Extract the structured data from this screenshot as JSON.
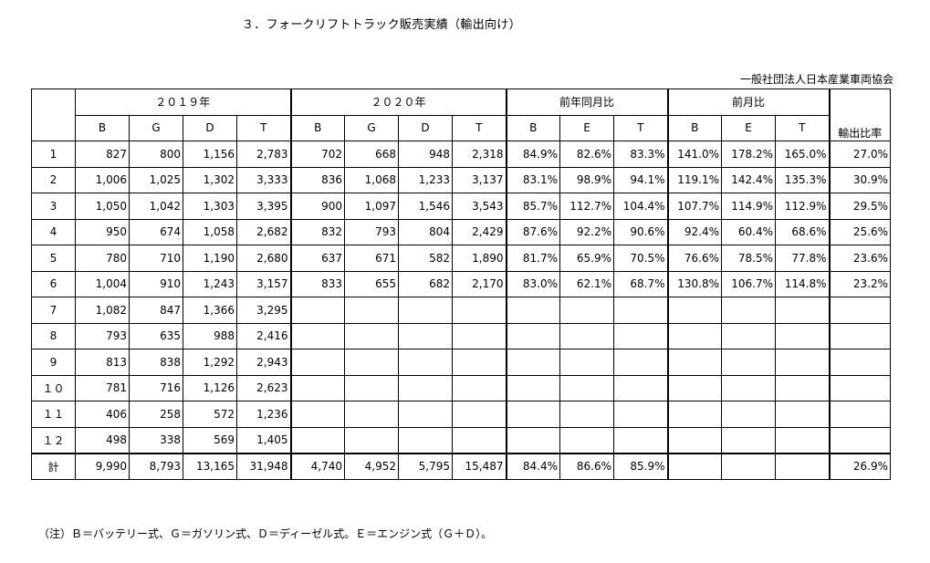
{
  "title": "３．フォークリフトトラック販売実績（輸出向け）",
  "organization": "一般社団法人日本産業車両協会",
  "header": {
    "group_2019": "２０１９年",
    "group_2020": "２０２０年",
    "group_yoy": "前年同月比",
    "group_mom": "前月比",
    "export_ratio": "輸出比率",
    "sub_2019": [
      "B",
      "G",
      "D",
      "T"
    ],
    "sub_2020": [
      "B",
      "G",
      "D",
      "T"
    ],
    "sub_yoy": [
      "B",
      "E",
      "T"
    ],
    "sub_mom": [
      "B",
      "E",
      "T"
    ]
  },
  "rows": [
    {
      "month": "1",
      "y2019": [
        "827",
        "800",
        "1,156",
        "2,783"
      ],
      "y2020": [
        "702",
        "668",
        "948",
        "2,318"
      ],
      "yoy": [
        "84.9%",
        "82.6%",
        "83.3%"
      ],
      "mom": [
        "141.0%",
        "178.2%",
        "165.0%"
      ],
      "ratio": "27.0%"
    },
    {
      "month": "2",
      "y2019": [
        "1,006",
        "1,025",
        "1,302",
        "3,333"
      ],
      "y2020": [
        "836",
        "1,068",
        "1,233",
        "3,137"
      ],
      "yoy": [
        "83.1%",
        "98.9%",
        "94.1%"
      ],
      "mom": [
        "119.1%",
        "142.4%",
        "135.3%"
      ],
      "ratio": "30.9%"
    },
    {
      "month": "3",
      "y2019": [
        "1,050",
        "1,042",
        "1,303",
        "3,395"
      ],
      "y2020": [
        "900",
        "1,097",
        "1,546",
        "3,543"
      ],
      "yoy": [
        "85.7%",
        "112.7%",
        "104.4%"
      ],
      "mom": [
        "107.7%",
        "114.9%",
        "112.9%"
      ],
      "ratio": "29.5%"
    },
    {
      "month": "4",
      "y2019": [
        "950",
        "674",
        "1,058",
        "2,682"
      ],
      "y2020": [
        "832",
        "793",
        "804",
        "2,429"
      ],
      "yoy": [
        "87.6%",
        "92.2%",
        "90.6%"
      ],
      "mom": [
        "92.4%",
        "60.4%",
        "68.6%"
      ],
      "ratio": "25.6%"
    },
    {
      "month": "5",
      "y2019": [
        "780",
        "710",
        "1,190",
        "2,680"
      ],
      "y2020": [
        "637",
        "671",
        "582",
        "1,890"
      ],
      "yoy": [
        "81.7%",
        "65.9%",
        "70.5%"
      ],
      "mom": [
        "76.6%",
        "78.5%",
        "77.8%"
      ],
      "ratio": "23.6%"
    },
    {
      "month": "6",
      "y2019": [
        "1,004",
        "910",
        "1,243",
        "3,157"
      ],
      "y2020": [
        "833",
        "655",
        "682",
        "2,170"
      ],
      "yoy": [
        "83.0%",
        "62.1%",
        "68.7%"
      ],
      "mom": [
        "130.8%",
        "106.7%",
        "114.8%"
      ],
      "ratio": "23.2%"
    },
    {
      "month": "7",
      "y2019": [
        "1,082",
        "847",
        "1,366",
        "3,295"
      ],
      "y2020": [
        "",
        "",
        "",
        ""
      ],
      "yoy": [
        "",
        "",
        ""
      ],
      "mom": [
        "",
        "",
        ""
      ],
      "ratio": ""
    },
    {
      "month": "8",
      "y2019": [
        "793",
        "635",
        "988",
        "2,416"
      ],
      "y2020": [
        "",
        "",
        "",
        ""
      ],
      "yoy": [
        "",
        "",
        ""
      ],
      "mom": [
        "",
        "",
        ""
      ],
      "ratio": ""
    },
    {
      "month": "9",
      "y2019": [
        "813",
        "838",
        "1,292",
        "2,943"
      ],
      "y2020": [
        "",
        "",
        "",
        ""
      ],
      "yoy": [
        "",
        "",
        ""
      ],
      "mom": [
        "",
        "",
        ""
      ],
      "ratio": ""
    },
    {
      "month": "１０",
      "y2019": [
        "781",
        "716",
        "1,126",
        "2,623"
      ],
      "y2020": [
        "",
        "",
        "",
        ""
      ],
      "yoy": [
        "",
        "",
        ""
      ],
      "mom": [
        "",
        "",
        ""
      ],
      "ratio": ""
    },
    {
      "month": "１１",
      "y2019": [
        "406",
        "258",
        "572",
        "1,236"
      ],
      "y2020": [
        "",
        "",
        "",
        ""
      ],
      "yoy": [
        "",
        "",
        ""
      ],
      "mom": [
        "",
        "",
        ""
      ],
      "ratio": ""
    },
    {
      "month": "１２",
      "y2019": [
        "498",
        "338",
        "569",
        "1,405"
      ],
      "y2020": [
        "",
        "",
        "",
        ""
      ],
      "yoy": [
        "",
        "",
        ""
      ],
      "mom": [
        "",
        "",
        ""
      ],
      "ratio": ""
    }
  ],
  "total": {
    "label": "計",
    "y2019": [
      "9,990",
      "8,793",
      "13,165",
      "31,948"
    ],
    "y2020": [
      "4,740",
      "4,952",
      "5,795",
      "15,487"
    ],
    "yoy": [
      "84.4%",
      "86.6%",
      "85.9%"
    ],
    "mom": [
      "",
      "",
      ""
    ],
    "ratio": "26.9%"
  },
  "note": "（注）Ｂ＝バッテリー式、Ｇ＝ガソリン式、Ｄ＝ディーゼル式。Ｅ＝エンジン式（Ｇ＋Ｄ）。"
}
